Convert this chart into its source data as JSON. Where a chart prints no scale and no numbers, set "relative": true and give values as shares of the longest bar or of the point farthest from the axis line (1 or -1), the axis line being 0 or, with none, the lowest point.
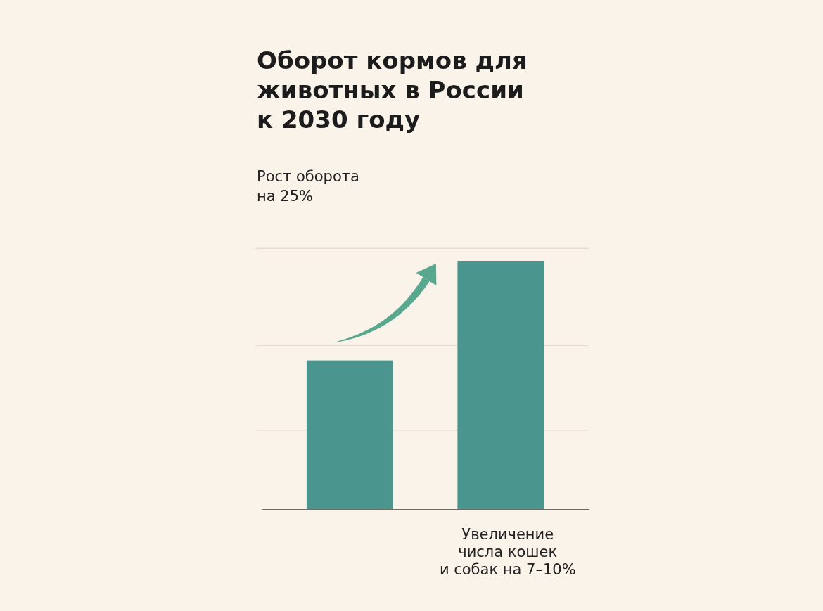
{
  "chart_data": {
    "type": "bar",
    "title": "Оборот кормов для\nживотных в России\nк 2030 году",
    "subtitle": "Рост оборота\nна 25%",
    "categories": [
      null,
      null
    ],
    "values": [
      0.6,
      1
    ],
    "color": "#4a968f",
    "relative": true,
    "ref_lines": [
      {
        "axis": "y",
        "value": 0.32,
        "color": "#e6ddd0"
      },
      {
        "axis": "y",
        "value": 0.66,
        "color": "#e6ddd0"
      },
      {
        "axis": "y",
        "value": 1.05,
        "color": "#e6ddd0"
      }
    ],
    "annotations": [
      "Увеличение\nчисла кошек\nи собак на 7–10%"
    ]
  }
}
